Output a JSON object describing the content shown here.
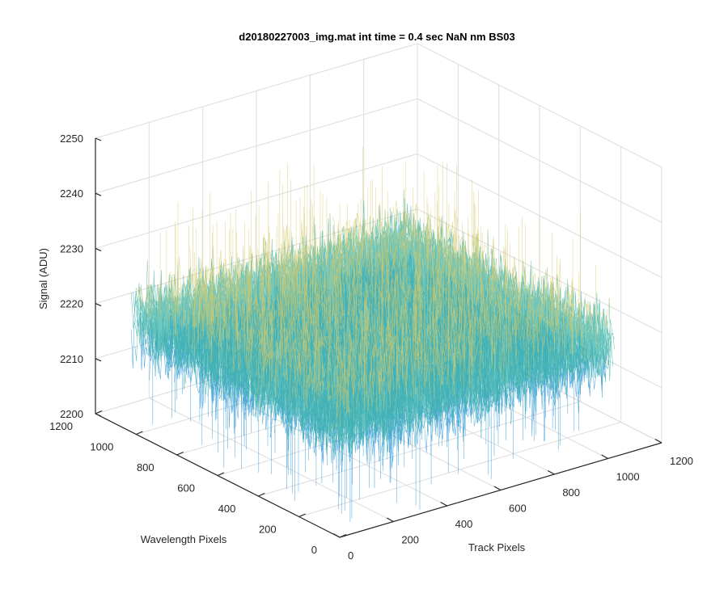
{
  "chart_data": {
    "type": "surface",
    "title": "d20180227003_img.mat int time = 0.4 sec  NaN nm BS03",
    "xlabel": "Track Pixels",
    "ylabel": "Wavelength Pixels",
    "zlabel": "Signal (ADU)",
    "xlim": [
      0,
      1200
    ],
    "ylim": [
      0,
      1200
    ],
    "zlim": [
      2200,
      2250
    ],
    "x_ticks": [
      "0",
      "200",
      "400",
      "600",
      "800",
      "1000",
      "1200"
    ],
    "y_ticks": [
      "0",
      "200",
      "400",
      "600",
      "800",
      "1000",
      "1200"
    ],
    "z_ticks": [
      "2200",
      "2210",
      "2220",
      "2230",
      "2240",
      "2250"
    ],
    "grid": true,
    "colormap": "parula",
    "data_extent": {
      "track_pixels": [
        0,
        1024
      ],
      "wavelength_pixels": [
        0,
        1024
      ]
    },
    "signal_mean": 2220,
    "signal_typical_range": [
      2210,
      2230
    ],
    "signal_extremes": [
      2200,
      2245
    ],
    "colors": {
      "axis": "#262626",
      "grid": "#dcdcdc",
      "low": "#1f8fd6",
      "mid": "#3bb3a8",
      "high": "#d7c96a"
    }
  }
}
